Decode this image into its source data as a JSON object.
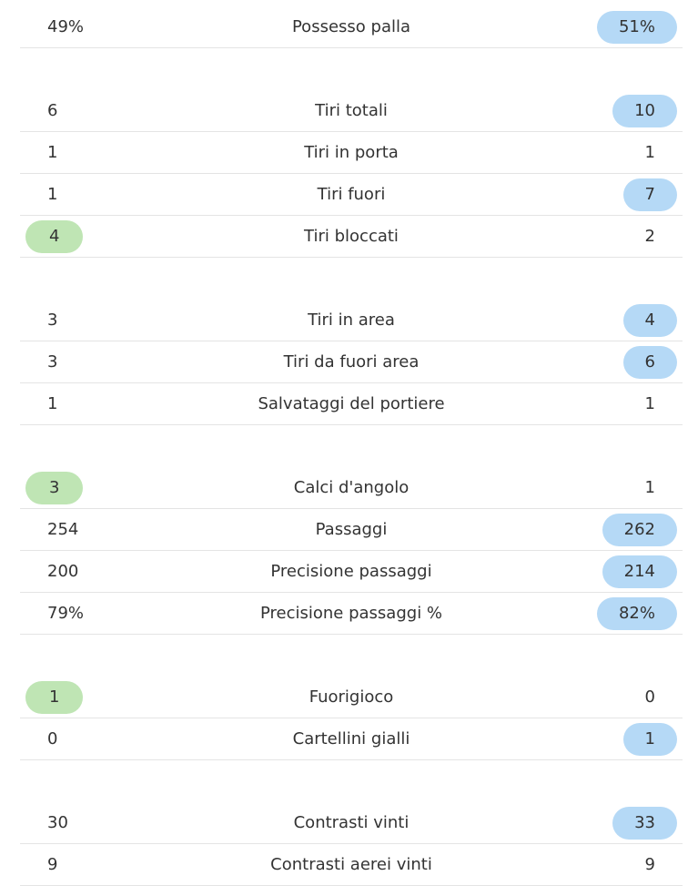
{
  "groups": [
    {
      "rows": [
        {
          "label": "Possesso palla",
          "home": "49%",
          "away": "51%",
          "highlight": "away"
        }
      ]
    },
    {
      "rows": [
        {
          "label": "Tiri totali",
          "home": "6",
          "away": "10",
          "highlight": "away"
        },
        {
          "label": "Tiri in porta",
          "home": "1",
          "away": "1"
        },
        {
          "label": "Tiri fuori",
          "home": "1",
          "away": "7",
          "highlight": "away"
        },
        {
          "label": "Tiri bloccati",
          "home": "4",
          "away": "2",
          "highlight": "home"
        }
      ]
    },
    {
      "rows": [
        {
          "label": "Tiri in area",
          "home": "3",
          "away": "4",
          "highlight": "away"
        },
        {
          "label": "Tiri da fuori area",
          "home": "3",
          "away": "6",
          "highlight": "away"
        },
        {
          "label": "Salvataggi del portiere",
          "home": "1",
          "away": "1"
        }
      ]
    },
    {
      "rows": [
        {
          "label": "Calci d'angolo",
          "home": "3",
          "away": "1",
          "highlight": "home"
        },
        {
          "label": "Passaggi",
          "home": "254",
          "away": "262",
          "highlight": "away"
        },
        {
          "label": "Precisione passaggi",
          "home": "200",
          "away": "214",
          "highlight": "away"
        },
        {
          "label": "Precisione passaggi %",
          "home": "79%",
          "away": "82%",
          "highlight": "away"
        }
      ]
    },
    {
      "rows": [
        {
          "label": "Fuorigioco",
          "home": "1",
          "away": "0",
          "highlight": "home"
        },
        {
          "label": "Cartellini gialli",
          "home": "0",
          "away": "1",
          "highlight": "away"
        }
      ]
    },
    {
      "rows": [
        {
          "label": "Contrasti vinti",
          "home": "30",
          "away": "33",
          "highlight": "away"
        },
        {
          "label": "Contrasti aerei vinti",
          "home": "9",
          "away": "9"
        }
      ]
    }
  ]
}
